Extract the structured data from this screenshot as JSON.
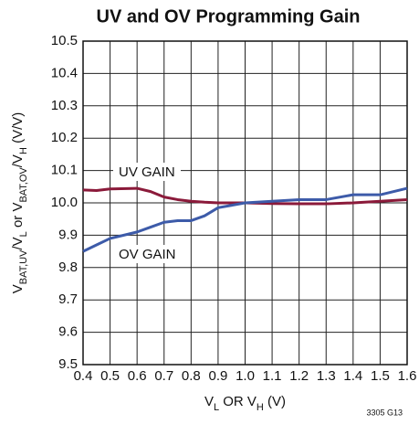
{
  "chart_data": {
    "type": "line",
    "title": "UV and OV Programming Gain",
    "xlabel": [
      "V",
      "L",
      " OR V",
      "H",
      " (V)"
    ],
    "ylabel": [
      "V",
      "BAT,UV",
      "/V",
      "L",
      " or V",
      "BAT,OV",
      "/V",
      "H",
      " (V/V)"
    ],
    "annotations": [
      "UV GAIN",
      "OV GAIN",
      "3305 G13"
    ],
    "x": [
      0.4,
      0.45,
      0.5,
      0.6,
      0.65,
      0.7,
      0.75,
      0.8,
      0.85,
      0.9,
      1.0,
      1.1,
      1.2,
      1.3,
      1.4,
      1.5,
      1.6
    ],
    "series": [
      {
        "name": "UV GAIN",
        "color": "#8b1a3a",
        "values": [
          10.04,
          10.038,
          10.043,
          10.045,
          10.035,
          10.018,
          10.01,
          10.005,
          10.002,
          10.0,
          10.0,
          9.998,
          9.997,
          9.997,
          10.0,
          10.005,
          10.01
        ]
      },
      {
        "name": "OV GAIN",
        "color": "#3d5ba9",
        "values": [
          9.85,
          9.87,
          9.89,
          9.91,
          9.925,
          9.94,
          9.945,
          9.945,
          9.96,
          9.985,
          10.0,
          10.005,
          10.01,
          10.01,
          10.025,
          10.025,
          10.045
        ]
      }
    ],
    "xlim": [
      0.4,
      1.6
    ],
    "xticks": [
      0.4,
      0.5,
      0.6,
      0.7,
      0.8,
      0.9,
      {
        "value": 1.0,
        "label": "1.0"
      },
      1.1,
      1.2,
      1.3,
      1.4,
      1.5,
      1.6
    ],
    "ylim": [
      9.5,
      10.5
    ],
    "yticks": [
      9.5,
      9.6,
      9.7,
      9.8,
      9.9,
      {
        "value": 10.0,
        "label": "10.0"
      },
      10.1,
      10.2,
      10.3,
      10.4,
      10.5
    ],
    "grid": true
  }
}
